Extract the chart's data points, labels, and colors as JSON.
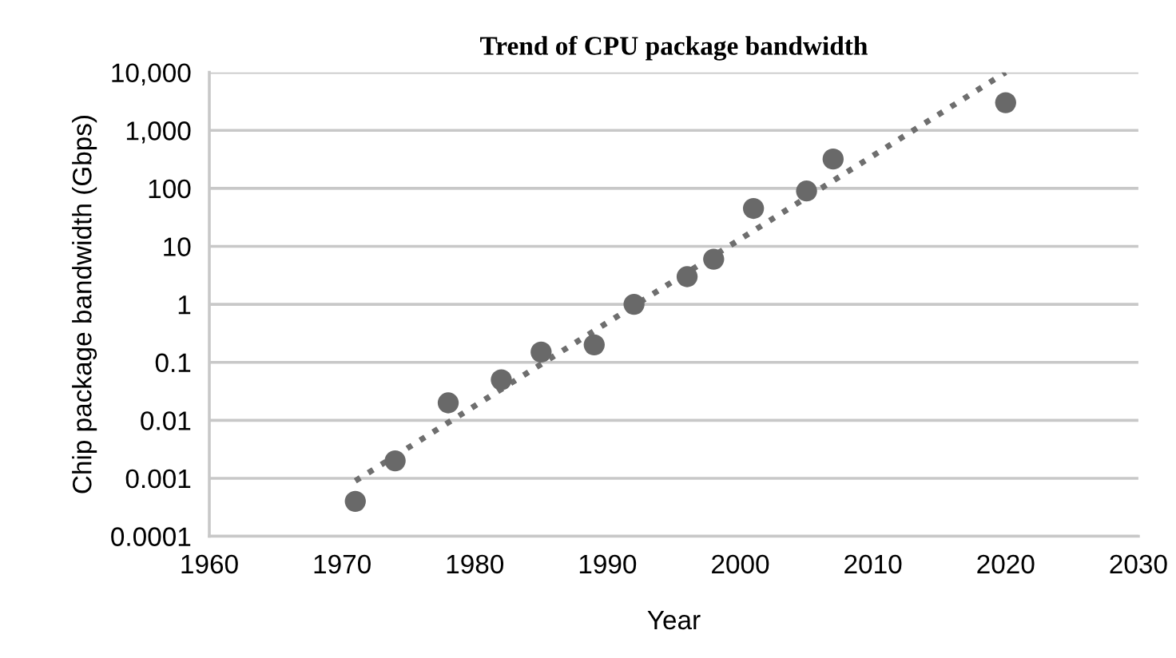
{
  "chart_data": {
    "type": "scatter",
    "title": "Trend of CPU package bandwidth",
    "xlabel": "Year",
    "ylabel": "Chip package bandwidth (Gbps)",
    "log": "y",
    "grid": "y",
    "marker": "circle",
    "xlim": [
      1960,
      2030
    ],
    "xticks": [
      1960,
      1970,
      1980,
      1990,
      2000,
      2010,
      2020,
      2030
    ],
    "ylim": [
      0.0001,
      10000
    ],
    "yticks": [
      {
        "value": 0.0001,
        "label": "0.0001"
      },
      {
        "value": 0.001,
        "label": "0.001"
      },
      {
        "value": 0.01,
        "label": "0.01"
      },
      {
        "value": 0.1,
        "label": "0.1"
      },
      {
        "value": 1,
        "label": "1"
      },
      {
        "value": 10,
        "label": "10"
      },
      {
        "value": 100,
        "label": "100"
      },
      {
        "value": 1000,
        "label": "1,000"
      },
      {
        "value": 10000,
        "label": "10,000"
      }
    ],
    "series": [
      {
        "color": "#696969",
        "x": [
          1971,
          1974,
          1978,
          1982,
          1985,
          1989,
          1992,
          1996,
          1998,
          2001,
          2005,
          2007,
          2020
        ],
        "values": [
          0.0004,
          0.002,
          0.02,
          0.05,
          0.15,
          0.2,
          1,
          3,
          6,
          45,
          90,
          320,
          3000
        ]
      },
      {
        "type": "line",
        "color": "#6e6e6e",
        "line_style": "dotted",
        "marker": "none",
        "x": [
          1971,
          2020
        ],
        "values": [
          0.0009,
          10000
        ]
      }
    ]
  }
}
